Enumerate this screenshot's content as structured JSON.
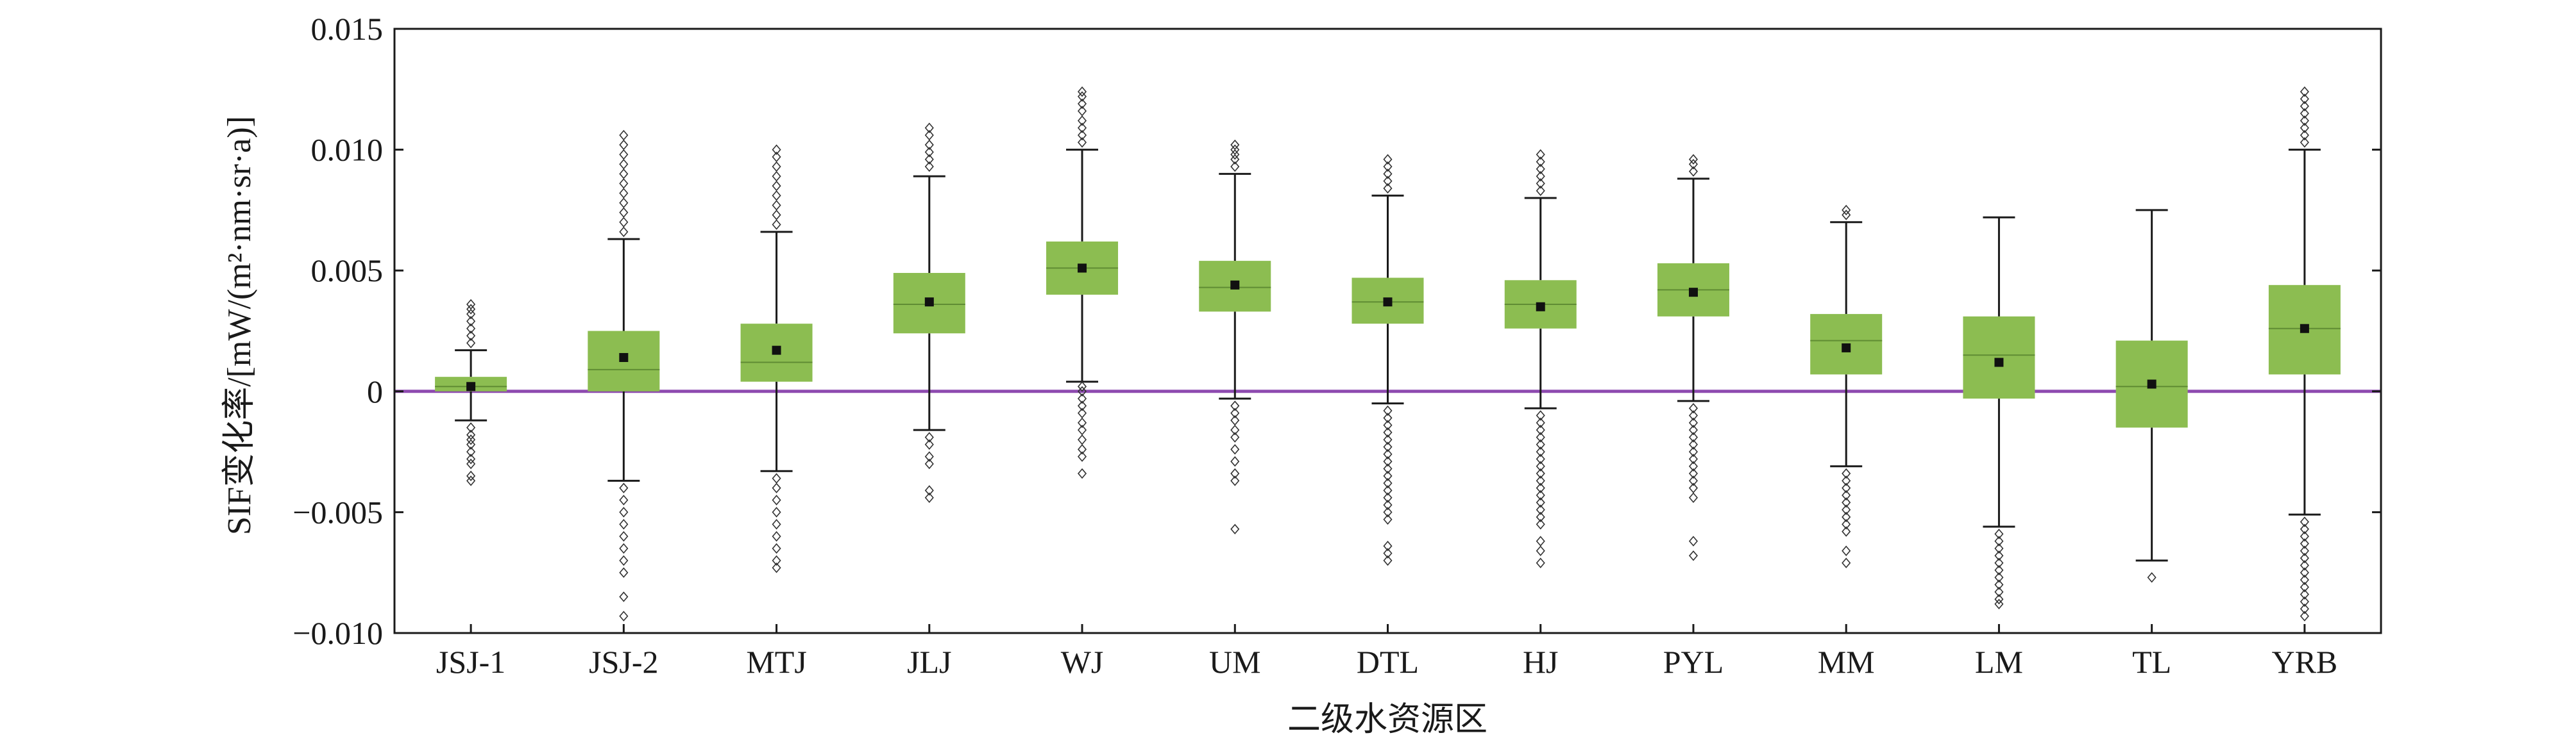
{
  "chart_data": {
    "type": "boxplot",
    "xlabel": "二级水资源区",
    "ylabel": "SIF变化率/[mW/(m²·nm·sr·a)]",
    "ylim": [
      -0.01,
      0.015
    ],
    "yticks": [
      -0.01,
      -0.005,
      0,
      0.005,
      0.01,
      0.015
    ],
    "ytick_labels": [
      "−0.010",
      "−0.005",
      "0",
      "0.005",
      "0.010",
      "0.015"
    ],
    "categories": [
      "JSJ-1",
      "JSJ-2",
      "MTJ",
      "JLJ",
      "WJ",
      "UM",
      "DTL",
      "HJ",
      "PYL",
      "MM",
      "LM",
      "TL",
      "YRB"
    ],
    "reference_line": 0,
    "colors": {
      "box_fill": "#8cbd51",
      "median": "#5f8c33",
      "reference_line": "#8e4bb0",
      "whisker": "#1a1a1a",
      "mean_marker": "#111111",
      "outlier": "#333333"
    },
    "boxes": [
      {
        "q1": 0.0,
        "median": 0.0002,
        "q3": 0.0006,
        "mean": 0.0002,
        "whislo": -0.0012,
        "whishi": 0.0017,
        "fliers_low": [
          -0.0015,
          -0.0018,
          -0.002,
          -0.0022,
          -0.0025,
          -0.0028,
          -0.003,
          -0.0035,
          -0.0037
        ],
        "fliers_high": [
          0.002,
          0.0023,
          0.0026,
          0.0029,
          0.0032,
          0.0034,
          0.0036
        ]
      },
      {
        "q1": 0.0,
        "median": 0.0009,
        "q3": 0.0025,
        "mean": 0.0014,
        "whislo": -0.0037,
        "whishi": 0.0063,
        "fliers_low": [
          -0.004,
          -0.0045,
          -0.005,
          -0.0055,
          -0.006,
          -0.0065,
          -0.007,
          -0.0075,
          -0.0085,
          -0.0093
        ],
        "fliers_high": [
          0.0066,
          0.007,
          0.0074,
          0.0078,
          0.0082,
          0.0086,
          0.009,
          0.0094,
          0.0098,
          0.0102,
          0.0106
        ]
      },
      {
        "q1": 0.0004,
        "median": 0.0012,
        "q3": 0.0028,
        "mean": 0.0017,
        "whislo": -0.0033,
        "whishi": 0.0066,
        "fliers_low": [
          -0.0036,
          -0.004,
          -0.0045,
          -0.005,
          -0.0055,
          -0.006,
          -0.0065,
          -0.007,
          -0.0073
        ],
        "fliers_high": [
          0.0069,
          0.0073,
          0.0077,
          0.0081,
          0.0085,
          0.0089,
          0.0093,
          0.0097,
          0.01
        ]
      },
      {
        "q1": 0.0024,
        "median": 0.0036,
        "q3": 0.0049,
        "mean": 0.0037,
        "whislo": -0.0016,
        "whishi": 0.0089,
        "fliers_low": [
          -0.0019,
          -0.0022,
          -0.0027,
          -0.003,
          -0.0041,
          -0.0044
        ],
        "fliers_high": [
          0.0093,
          0.0096,
          0.0099,
          0.0102,
          0.0106,
          0.0109
        ]
      },
      {
        "q1": 0.004,
        "median": 0.0051,
        "q3": 0.0062,
        "mean": 0.0051,
        "whislo": 0.0004,
        "whishi": 0.01,
        "fliers_low": [
          0.0002,
          0.0,
          -0.0003,
          -0.0006,
          -0.0009,
          -0.0013,
          -0.0016,
          -0.002,
          -0.0024,
          -0.0027,
          -0.0034
        ],
        "fliers_high": [
          0.0103,
          0.0106,
          0.0109,
          0.0112,
          0.0116,
          0.0119,
          0.0122,
          0.0124
        ]
      },
      {
        "q1": 0.0033,
        "median": 0.0043,
        "q3": 0.0054,
        "mean": 0.0044,
        "whislo": -0.0003,
        "whishi": 0.009,
        "fliers_low": [
          -0.0006,
          -0.0009,
          -0.0012,
          -0.0016,
          -0.0019,
          -0.0024,
          -0.0029,
          -0.0034,
          -0.0037,
          -0.0057
        ],
        "fliers_high": [
          0.0093,
          0.0096,
          0.0098,
          0.01,
          0.0102
        ]
      },
      {
        "q1": 0.0028,
        "median": 0.0037,
        "q3": 0.0047,
        "mean": 0.0037,
        "whislo": -0.0005,
        "whishi": 0.0081,
        "fliers_low": [
          -0.0008,
          -0.0011,
          -0.0014,
          -0.0017,
          -0.002,
          -0.0023,
          -0.0026,
          -0.0029,
          -0.0032,
          -0.0035,
          -0.0038,
          -0.0041,
          -0.0044,
          -0.0047,
          -0.005,
          -0.0053,
          -0.0064,
          -0.0067,
          -0.007
        ],
        "fliers_high": [
          0.0084,
          0.0087,
          0.009,
          0.0093,
          0.0096
        ]
      },
      {
        "q1": 0.0026,
        "median": 0.0036,
        "q3": 0.0046,
        "mean": 0.0035,
        "whislo": -0.0007,
        "whishi": 0.008,
        "fliers_low": [
          -0.001,
          -0.0013,
          -0.0016,
          -0.0019,
          -0.0022,
          -0.0025,
          -0.0028,
          -0.0031,
          -0.0034,
          -0.0037,
          -0.004,
          -0.0043,
          -0.0046,
          -0.0049,
          -0.0052,
          -0.0055,
          -0.0062,
          -0.0066,
          -0.0071
        ],
        "fliers_high": [
          0.0083,
          0.0086,
          0.0089,
          0.0092,
          0.0095,
          0.0098
        ]
      },
      {
        "q1": 0.0031,
        "median": 0.0042,
        "q3": 0.0053,
        "mean": 0.0041,
        "whislo": -0.0004,
        "whishi": 0.0088,
        "fliers_low": [
          -0.0007,
          -0.001,
          -0.0013,
          -0.0016,
          -0.0019,
          -0.0022,
          -0.0025,
          -0.0028,
          -0.0031,
          -0.0034,
          -0.0037,
          -0.004,
          -0.0044,
          -0.0062,
          -0.0068
        ],
        "fliers_high": [
          0.0091,
          0.0094,
          0.0096
        ]
      },
      {
        "q1": 0.0007,
        "median": 0.0021,
        "q3": 0.0032,
        "mean": 0.0018,
        "whislo": -0.0031,
        "whishi": 0.007,
        "fliers_low": [
          -0.0034,
          -0.0037,
          -0.004,
          -0.0043,
          -0.0046,
          -0.0049,
          -0.0052,
          -0.0055,
          -0.0058,
          -0.0066,
          -0.0071
        ],
        "fliers_high": [
          0.0073,
          0.0075
        ]
      },
      {
        "q1": -0.0003,
        "median": 0.0015,
        "q3": 0.0031,
        "mean": 0.0012,
        "whislo": -0.0056,
        "whishi": 0.0072,
        "fliers_low": [
          -0.0059,
          -0.0062,
          -0.0065,
          -0.0068,
          -0.0071,
          -0.0074,
          -0.0077,
          -0.008,
          -0.0083,
          -0.0086,
          -0.0088
        ],
        "fliers_high": []
      },
      {
        "q1": -0.0015,
        "median": 0.0002,
        "q3": 0.0021,
        "mean": 0.0003,
        "whislo": -0.007,
        "whishi": 0.0075,
        "fliers_low": [
          -0.0077
        ],
        "fliers_high": []
      },
      {
        "q1": 0.0007,
        "median": 0.0026,
        "q3": 0.0044,
        "mean": 0.0026,
        "whislo": -0.0051,
        "whishi": 0.01,
        "fliers_low": [
          -0.0054,
          -0.0057,
          -0.006,
          -0.0063,
          -0.0066,
          -0.0069,
          -0.0072,
          -0.0075,
          -0.0078,
          -0.0081,
          -0.0084,
          -0.0087,
          -0.009,
          -0.0093
        ],
        "fliers_high": [
          0.0103,
          0.0106,
          0.0109,
          0.0112,
          0.0115,
          0.0118,
          0.0121,
          0.0124
        ]
      }
    ]
  }
}
